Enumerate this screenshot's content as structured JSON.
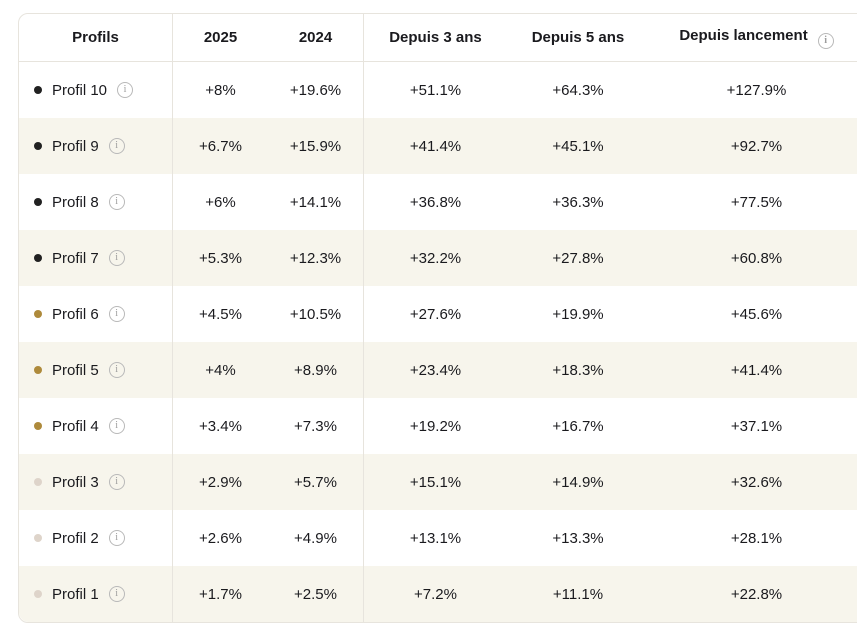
{
  "colors": {
    "page_background": "#ffffff",
    "row_alt_background": "#f7f5ec",
    "border": "#e7e4dd",
    "text": "#1a1a1e",
    "info_icon": "#b9b9b9",
    "dot_black": "#212121",
    "dot_gold": "#ae8a3b",
    "dot_light": "#ded4ca"
  },
  "icons": {
    "info_glyph": "i"
  },
  "table": {
    "columns": [
      {
        "label": "Profils",
        "has_info_icon": false
      },
      {
        "label": "2025",
        "has_info_icon": false
      },
      {
        "label": "2024",
        "has_info_icon": false
      },
      {
        "label": "Depuis 3 ans",
        "has_info_icon": false
      },
      {
        "label": "Depuis 5 ans",
        "has_info_icon": false
      },
      {
        "label": "Depuis lancement",
        "has_info_icon": true
      }
    ],
    "rows": [
      {
        "label": "Profil 10",
        "dot_color": "#212121",
        "values": [
          "+8%",
          "+19.6%",
          "+51.1%",
          "+64.3%",
          "+127.9%"
        ]
      },
      {
        "label": "Profil 9",
        "dot_color": "#212121",
        "values": [
          "+6.7%",
          "+15.9%",
          "+41.4%",
          "+45.1%",
          "+92.7%"
        ]
      },
      {
        "label": "Profil 8",
        "dot_color": "#212121",
        "values": [
          "+6%",
          "+14.1%",
          "+36.8%",
          "+36.3%",
          "+77.5%"
        ]
      },
      {
        "label": "Profil 7",
        "dot_color": "#212121",
        "values": [
          "+5.3%",
          "+12.3%",
          "+32.2%",
          "+27.8%",
          "+60.8%"
        ]
      },
      {
        "label": "Profil 6",
        "dot_color": "#ae8a3b",
        "values": [
          "+4.5%",
          "+10.5%",
          "+27.6%",
          "+19.9%",
          "+45.6%"
        ]
      },
      {
        "label": "Profil 5",
        "dot_color": "#ae8a3b",
        "values": [
          "+4%",
          "+8.9%",
          "+23.4%",
          "+18.3%",
          "+41.4%"
        ]
      },
      {
        "label": "Profil 4",
        "dot_color": "#ae8a3b",
        "values": [
          "+3.4%",
          "+7.3%",
          "+19.2%",
          "+16.7%",
          "+37.1%"
        ]
      },
      {
        "label": "Profil 3",
        "dot_color": "#ded4ca",
        "values": [
          "+2.9%",
          "+5.7%",
          "+15.1%",
          "+14.9%",
          "+32.6%"
        ]
      },
      {
        "label": "Profil 2",
        "dot_color": "#ded4ca",
        "values": [
          "+2.6%",
          "+4.9%",
          "+13.1%",
          "+13.3%",
          "+28.1%"
        ]
      },
      {
        "label": "Profil 1",
        "dot_color": "#ded4ca",
        "values": [
          "+1.7%",
          "+2.5%",
          "+7.2%",
          "+11.1%",
          "+22.8%"
        ]
      }
    ]
  }
}
